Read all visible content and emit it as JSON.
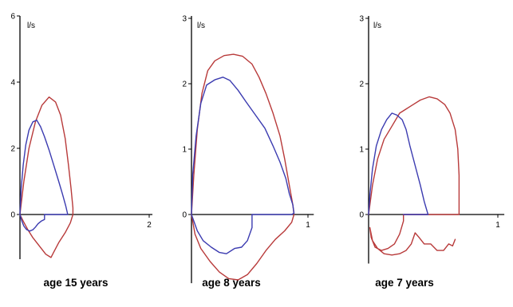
{
  "colors": {
    "red": "#b83a3a",
    "blue": "#3b3bb0",
    "axis": "#000000"
  },
  "chart_data": [
    {
      "type": "line",
      "caption": "age 15 years",
      "ylabel": "l/s",
      "xlim": [
        0,
        2.05
      ],
      "ylim": [
        -1.35,
        6
      ],
      "xticks": [
        2
      ],
      "xtick_labels": [
        "2"
      ],
      "yticks": [
        0,
        2,
        4,
        6
      ],
      "ytick_labels": [
        "0",
        "2",
        "4",
        "6"
      ],
      "series": [
        {
          "color": "red",
          "points": [
            [
              0,
              0
            ],
            [
              0.06,
              1.0
            ],
            [
              0.14,
              2.0
            ],
            [
              0.24,
              2.8
            ],
            [
              0.34,
              3.3
            ],
            [
              0.45,
              3.55
            ],
            [
              0.55,
              3.4
            ],
            [
              0.63,
              3.0
            ],
            [
              0.7,
              2.3
            ],
            [
              0.75,
              1.5
            ],
            [
              0.79,
              0.8
            ],
            [
              0.82,
              0.2
            ],
            [
              0.82,
              0
            ],
            [
              0.78,
              -0.25
            ],
            [
              0.7,
              -0.55
            ],
            [
              0.6,
              -0.85
            ],
            [
              0.52,
              -1.15
            ],
            [
              0.48,
              -1.3
            ],
            [
              0.4,
              -1.2
            ],
            [
              0.3,
              -0.95
            ],
            [
              0.2,
              -0.7
            ],
            [
              0.12,
              -0.45
            ],
            [
              0.05,
              -0.2
            ],
            [
              0,
              0
            ]
          ]
        },
        {
          "color": "blue",
          "points": [
            [
              0,
              0
            ],
            [
              0.02,
              0.8
            ],
            [
              0.05,
              1.5
            ],
            [
              0.09,
              2.1
            ],
            [
              0.14,
              2.55
            ],
            [
              0.2,
              2.8
            ],
            [
              0.26,
              2.85
            ],
            [
              0.32,
              2.65
            ],
            [
              0.38,
              2.35
            ],
            [
              0.45,
              1.95
            ],
            [
              0.53,
              1.45
            ],
            [
              0.6,
              1.0
            ],
            [
              0.66,
              0.6
            ],
            [
              0.71,
              0.25
            ],
            [
              0.74,
              0
            ],
            [
              0.7,
              0
            ],
            [
              0.6,
              0
            ],
            [
              0.5,
              0
            ],
            [
              0.38,
              0
            ],
            [
              0.38,
              -0.15
            ],
            [
              0.33,
              -0.2
            ],
            [
              0.28,
              -0.28
            ],
            [
              0.24,
              -0.38
            ],
            [
              0.2,
              -0.46
            ],
            [
              0.15,
              -0.5
            ],
            [
              0.1,
              -0.45
            ],
            [
              0.06,
              -0.35
            ],
            [
              0.03,
              -0.2
            ],
            [
              0,
              0
            ]
          ]
        }
      ]
    },
    {
      "type": "line",
      "caption": "age 8 years",
      "ylabel": "l/s",
      "xlim": [
        0,
        1.05
      ],
      "ylim": [
        -1.05,
        3
      ],
      "xticks": [
        1
      ],
      "xtick_labels": [
        "1"
      ],
      "yticks": [
        0,
        1,
        2,
        3
      ],
      "ytick_labels": [
        "0",
        "1",
        "2",
        "3"
      ],
      "series": [
        {
          "color": "red",
          "points": [
            [
              0,
              0
            ],
            [
              0.02,
              0.6
            ],
            [
              0.05,
              1.3
            ],
            [
              0.09,
              1.85
            ],
            [
              0.14,
              2.2
            ],
            [
              0.2,
              2.35
            ],
            [
              0.28,
              2.43
            ],
            [
              0.36,
              2.45
            ],
            [
              0.44,
              2.42
            ],
            [
              0.52,
              2.3
            ],
            [
              0.58,
              2.1
            ],
            [
              0.64,
              1.85
            ],
            [
              0.7,
              1.55
            ],
            [
              0.76,
              1.2
            ],
            [
              0.8,
              0.85
            ],
            [
              0.84,
              0.45
            ],
            [
              0.87,
              0.15
            ],
            [
              0.88,
              0
            ],
            [
              0.86,
              -0.12
            ],
            [
              0.8,
              -0.25
            ],
            [
              0.72,
              -0.38
            ],
            [
              0.64,
              -0.55
            ],
            [
              0.56,
              -0.75
            ],
            [
              0.48,
              -0.92
            ],
            [
              0.4,
              -1.0
            ],
            [
              0.32,
              -0.98
            ],
            [
              0.24,
              -0.88
            ],
            [
              0.16,
              -0.72
            ],
            [
              0.08,
              -0.52
            ],
            [
              0.03,
              -0.3
            ],
            [
              0,
              0
            ]
          ]
        },
        {
          "color": "blue",
          "points": [
            [
              0,
              0
            ],
            [
              0.01,
              0.6
            ],
            [
              0.04,
              1.2
            ],
            [
              0.08,
              1.7
            ],
            [
              0.13,
              1.98
            ],
            [
              0.2,
              2.06
            ],
            [
              0.27,
              2.1
            ],
            [
              0.33,
              2.05
            ],
            [
              0.4,
              1.9
            ],
            [
              0.47,
              1.72
            ],
            [
              0.55,
              1.52
            ],
            [
              0.63,
              1.32
            ],
            [
              0.7,
              1.05
            ],
            [
              0.76,
              0.8
            ],
            [
              0.81,
              0.55
            ],
            [
              0.84,
              0.32
            ],
            [
              0.87,
              0.15
            ],
            [
              0.88,
              0.02
            ],
            [
              0.86,
              0
            ],
            [
              0.6,
              0
            ],
            [
              0.52,
              0
            ],
            [
              0.52,
              -0.2
            ],
            [
              0.48,
              -0.4
            ],
            [
              0.43,
              -0.5
            ],
            [
              0.37,
              -0.52
            ],
            [
              0.3,
              -0.6
            ],
            [
              0.24,
              -0.58
            ],
            [
              0.17,
              -0.5
            ],
            [
              0.1,
              -0.4
            ],
            [
              0.05,
              -0.25
            ],
            [
              0,
              0
            ]
          ]
        }
      ]
    },
    {
      "type": "line",
      "caption": "age 7 years",
      "ylabel": "l/s",
      "xlim": [
        0,
        1.05
      ],
      "ylim": [
        -0.75,
        3
      ],
      "xticks": [
        1
      ],
      "xtick_labels": [
        "1"
      ],
      "yticks": [
        0,
        1,
        2,
        3
      ],
      "ytick_labels": [
        "0",
        "1",
        "2",
        "3"
      ],
      "series": [
        {
          "color": "red",
          "points": [
            [
              0,
              0
            ],
            [
              0.03,
              0.45
            ],
            [
              0.07,
              0.85
            ],
            [
              0.12,
              1.15
            ],
            [
              0.18,
              1.35
            ],
            [
              0.24,
              1.55
            ],
            [
              0.32,
              1.65
            ],
            [
              0.4,
              1.75
            ],
            [
              0.47,
              1.8
            ],
            [
              0.53,
              1.77
            ],
            [
              0.59,
              1.68
            ],
            [
              0.63,
              1.55
            ],
            [
              0.67,
              1.3
            ],
            [
              0.69,
              1.0
            ],
            [
              0.7,
              0.6
            ],
            [
              0.7,
              0.2
            ],
            [
              0.7,
              0
            ],
            [
              0.5,
              0
            ],
            [
              0.4,
              0
            ],
            [
              0.27,
              0
            ],
            [
              0.27,
              -0.1
            ],
            [
              0.24,
              -0.3
            ],
            [
              0.2,
              -0.45
            ],
            [
              0.15,
              -0.52
            ],
            [
              0.1,
              -0.55
            ],
            [
              0.05,
              -0.5
            ],
            [
              0.02,
              -0.35
            ],
            [
              0.01,
              -0.2
            ],
            [
              0.03,
              -0.4
            ],
            [
              0.07,
              -0.52
            ],
            [
              0.12,
              -0.6
            ],
            [
              0.18,
              -0.62
            ],
            [
              0.24,
              -0.6
            ],
            [
              0.29,
              -0.55
            ],
            [
              0.33,
              -0.45
            ],
            [
              0.36,
              -0.28
            ],
            [
              0.39,
              -0.35
            ],
            [
              0.43,
              -0.45
            ],
            [
              0.48,
              -0.45
            ],
            [
              0.53,
              -0.55
            ],
            [
              0.58,
              -0.55
            ],
            [
              0.62,
              -0.45
            ],
            [
              0.65,
              -0.48
            ],
            [
              0.67,
              -0.38
            ]
          ]
        },
        {
          "color": "blue",
          "points": [
            [
              0,
              0
            ],
            [
              0.01,
              0.3
            ],
            [
              0.03,
              0.7
            ],
            [
              0.06,
              1.05
            ],
            [
              0.1,
              1.3
            ],
            [
              0.14,
              1.45
            ],
            [
              0.18,
              1.55
            ],
            [
              0.22,
              1.52
            ],
            [
              0.26,
              1.45
            ],
            [
              0.29,
              1.3
            ],
            [
              0.32,
              1.05
            ],
            [
              0.36,
              0.75
            ],
            [
              0.4,
              0.45
            ],
            [
              0.43,
              0.2
            ],
            [
              0.46,
              0
            ],
            [
              0.3,
              0
            ],
            [
              0.27,
              0
            ]
          ]
        }
      ]
    }
  ]
}
